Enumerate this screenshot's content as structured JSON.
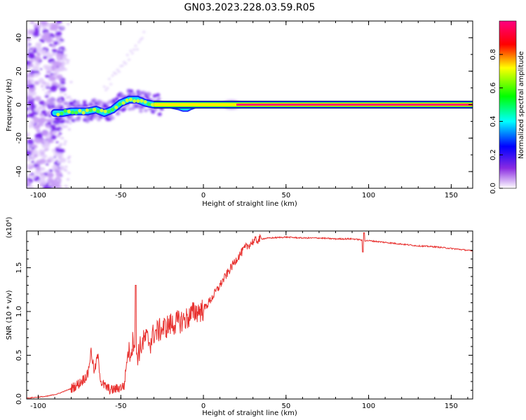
{
  "title": "GN03.2023.228.03.59.R05",
  "chart_data": [
    {
      "type": "heatmap",
      "xlabel": "Height of straight line (km)",
      "ylabel": "Frequency (Hz)",
      "xlim": [
        -107,
        163
      ],
      "ylim": [
        -50,
        50
      ],
      "xticks": [
        -100,
        -50,
        0,
        50,
        100,
        150
      ],
      "yticks": [
        -40,
        -20,
        0,
        20,
        40
      ],
      "ridge": {
        "x": [
          -90,
          -85,
          -80,
          -75,
          -70,
          -65,
          -60,
          -55,
          -50,
          -45,
          -40,
          -35,
          -30,
          -25,
          -20,
          -15,
          -12,
          -10,
          -8,
          -5,
          0,
          10,
          20,
          40,
          60,
          80,
          100,
          120,
          140,
          160
        ],
        "y": [
          -5,
          -5,
          -4,
          -4,
          -4,
          -3,
          -5,
          -3,
          1,
          3,
          3,
          1,
          0,
          0,
          0,
          -1,
          -2,
          -2,
          -1,
          0,
          0,
          0,
          0,
          0,
          0,
          0,
          0,
          0,
          0,
          0
        ]
      },
      "colorbar": {
        "label": "Normalized spectral amplitude",
        "range": [
          0,
          1
        ],
        "ticks": [
          0.0,
          0.2,
          0.4,
          0.6,
          0.8
        ],
        "tick_labels": [
          "0.0",
          "0.2",
          "0.4",
          "0.6",
          "0.8"
        ],
        "colormap": [
          "#ffffff",
          "#8a2be2",
          "#0000ff",
          "#00ffff",
          "#00ff00",
          "#ffff00",
          "#ff0000",
          "#ff0080"
        ]
      }
    },
    {
      "type": "line",
      "xlabel": "Height of straight line (km)",
      "ylabel": "SNR (10 * v/v)",
      "scale_label": "(x10⁴)",
      "xlim": [
        -107,
        163
      ],
      "ylim": [
        0,
        1.92
      ],
      "xticks": [
        -100,
        -50,
        0,
        50,
        100,
        150
      ],
      "yticks": [
        0.0,
        0.5,
        1.0,
        1.5
      ],
      "ytick_labels": [
        "0.0",
        "0.5",
        "1.0",
        "1.5"
      ],
      "color": "#e8312f",
      "x": [
        -107,
        -95,
        -88,
        -80,
        -75,
        -70,
        -68,
        -66,
        -64,
        -62,
        -60,
        -56,
        -52,
        -48,
        -46,
        -44,
        -42,
        -40,
        -38,
        -35,
        -32,
        -30,
        -25,
        -20,
        -15,
        -10,
        -5,
        0,
        5,
        10,
        15,
        20,
        25,
        30,
        35,
        40,
        50,
        60,
        70,
        80,
        90,
        95,
        97,
        100,
        110,
        120,
        130,
        140,
        150,
        160,
        163
      ],
      "y": [
        0.01,
        0.03,
        0.06,
        0.12,
        0.18,
        0.28,
        0.55,
        0.3,
        0.5,
        0.2,
        0.15,
        0.1,
        0.12,
        0.15,
        0.5,
        0.55,
        0.7,
        0.5,
        0.6,
        0.7,
        0.65,
        0.75,
        0.8,
        0.85,
        0.88,
        0.92,
        1.0,
        1.02,
        1.15,
        1.3,
        1.45,
        1.6,
        1.72,
        1.8,
        1.83,
        1.84,
        1.85,
        1.84,
        1.84,
        1.83,
        1.83,
        1.82,
        1.81,
        1.81,
        1.79,
        1.77,
        1.75,
        1.74,
        1.72,
        1.7,
        1.69
      ]
    }
  ]
}
